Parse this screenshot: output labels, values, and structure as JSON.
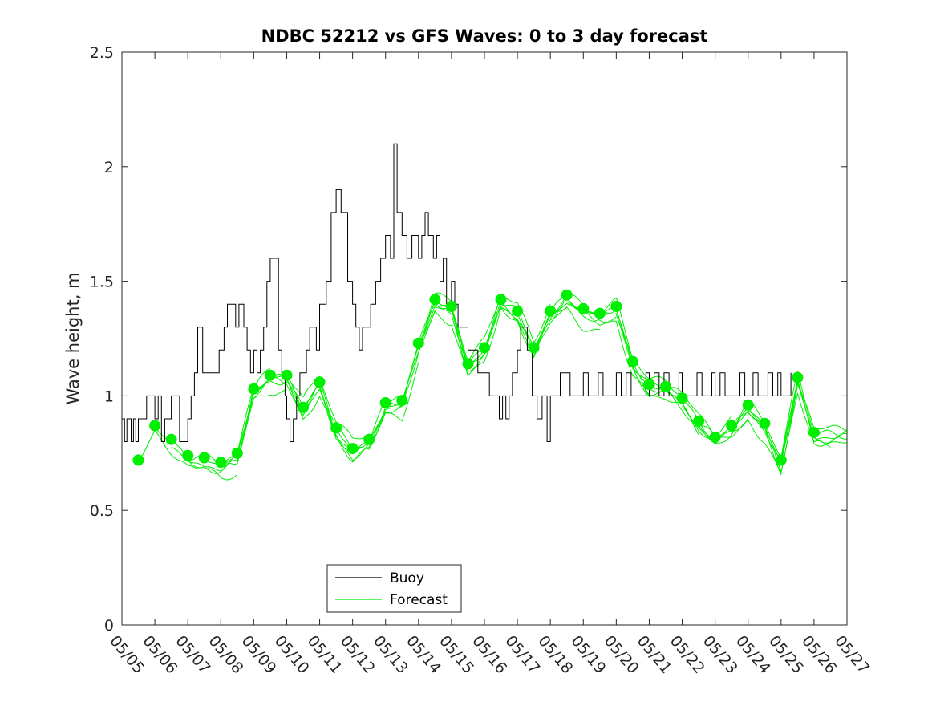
{
  "chart_data": {
    "type": "line",
    "title": "NDBC 52212 vs GFS Waves: 0 to 3 day forecast",
    "xlabel": "",
    "ylabel": "Wave height, m",
    "ylim": [
      0,
      2.5
    ],
    "xlim": [
      "05/05",
      "05/27"
    ],
    "x_tick_labels": [
      "05/05",
      "05/06",
      "05/07",
      "05/08",
      "05/09",
      "05/10",
      "05/11",
      "05/12",
      "05/13",
      "05/14",
      "05/15",
      "05/16",
      "05/17",
      "05/18",
      "05/19",
      "05/20",
      "05/21",
      "05/22",
      "05/23",
      "05/24",
      "05/25",
      "05/26",
      "05/27"
    ],
    "y_tick_labels": [
      "0",
      "0.5",
      "1",
      "1.5",
      "2",
      "2.5"
    ],
    "y_ticks": [
      0,
      0.5,
      1,
      1.5,
      2,
      2.5
    ],
    "grid": false,
    "legend_position": "bottom-left",
    "legend": [
      "Buoy",
      "Forecast"
    ],
    "colors": {
      "buoy": "#000000",
      "forecast": "#00ee00"
    },
    "series": [
      {
        "name": "Buoy",
        "x_days": [
          0,
          0.08,
          0.15,
          0.2,
          0.28,
          0.35,
          0.42,
          0.5,
          0.6,
          0.75,
          0.9,
          1.0,
          1.1,
          1.2,
          1.3,
          1.5,
          1.75,
          2.0,
          2.1,
          2.2,
          2.3,
          2.45,
          2.6,
          2.8,
          2.95,
          3.0,
          3.1,
          3.2,
          3.3,
          3.45,
          3.55,
          3.7,
          3.8,
          3.9,
          4.0,
          4.1,
          4.2,
          4.3,
          4.4,
          4.5,
          4.6,
          4.75,
          4.85,
          4.95,
          5.0,
          5.1,
          5.2,
          5.3,
          5.4,
          5.5,
          5.6,
          5.7,
          5.8,
          5.9,
          6.0,
          6.2,
          6.35,
          6.5,
          6.65,
          6.85,
          7.0,
          7.1,
          7.2,
          7.3,
          7.4,
          7.55,
          7.7,
          7.85,
          8.0,
          8.15,
          8.25,
          8.35,
          8.5,
          8.65,
          8.8,
          9.0,
          9.1,
          9.2,
          9.3,
          9.45,
          9.55,
          9.65,
          9.75,
          9.85,
          10.0,
          10.1,
          10.2,
          10.35,
          10.5,
          10.65,
          10.8,
          11.0,
          11.15,
          11.3,
          11.45,
          11.55,
          11.65,
          11.75,
          11.85,
          12.0,
          12.1,
          12.2,
          12.3,
          12.45,
          12.6,
          12.75,
          12.9,
          13.0,
          13.15,
          13.3,
          13.45,
          13.6,
          13.75,
          13.9,
          14.0,
          14.15,
          14.3,
          14.45,
          14.6,
          14.75,
          14.9,
          15.0,
          15.15,
          15.3,
          15.45,
          15.6,
          15.75,
          15.9,
          16.0,
          16.15,
          16.3,
          16.45,
          16.6,
          16.75,
          16.9,
          17.0,
          17.15,
          17.3,
          17.45,
          17.6,
          17.75,
          17.9,
          18.0,
          18.15,
          18.3,
          18.45,
          18.6,
          18.75,
          18.9,
          19.0,
          19.15,
          19.3,
          19.45,
          19.6,
          19.75,
          19.9,
          20.0,
          20.1,
          20.2,
          20.3
        ],
        "values": [
          0.9,
          0.8,
          0.9,
          0.9,
          0.8,
          0.9,
          0.8,
          0.9,
          0.9,
          1.0,
          1.0,
          0.9,
          1.0,
          0.8,
          0.9,
          1.0,
          0.8,
          0.9,
          1.0,
          1.1,
          1.3,
          1.1,
          1.1,
          1.1,
          1.2,
          1.2,
          1.3,
          1.4,
          1.4,
          1.3,
          1.4,
          1.3,
          1.2,
          1.1,
          1.2,
          1.1,
          1.2,
          1.3,
          1.5,
          1.6,
          1.6,
          1.2,
          1.1,
          1.0,
          0.9,
          0.8,
          0.9,
          1.0,
          1.1,
          1.1,
          1.2,
          1.3,
          1.3,
          1.2,
          1.4,
          1.5,
          1.8,
          1.9,
          1.8,
          1.5,
          1.4,
          1.3,
          1.2,
          1.3,
          1.3,
          1.4,
          1.5,
          1.6,
          1.7,
          1.6,
          2.1,
          1.8,
          1.7,
          1.6,
          1.7,
          1.6,
          1.7,
          1.8,
          1.7,
          1.6,
          1.7,
          1.5,
          1.6,
          1.4,
          1.5,
          1.4,
          1.3,
          1.3,
          1.2,
          1.2,
          1.1,
          1.1,
          1.0,
          1.0,
          0.9,
          1.0,
          0.9,
          1.0,
          1.1,
          1.2,
          1.3,
          1.3,
          1.2,
          1.0,
          0.9,
          1.0,
          0.8,
          1.0,
          1.0,
          1.1,
          1.1,
          1.0,
          1.0,
          1.0,
          1.1,
          1.0,
          1.0,
          1.1,
          1.0,
          1.0,
          1.0,
          1.1,
          1.0,
          1.1,
          1.0,
          1.0,
          1.0,
          1.1,
          1.0,
          1.1,
          1.0,
          1.1,
          1.0,
          1.0,
          1.1,
          1.0,
          1.0,
          1.0,
          1.1,
          1.0,
          1.0,
          1.1,
          1.0,
          1.1,
          1.0,
          1.0,
          1.0,
          1.1,
          1.0,
          1.0,
          1.1,
          1.0,
          1.0,
          1.1,
          1.0,
          1.1,
          1.0,
          1.0,
          1.0,
          1.1
        ]
      },
      {
        "name": "Forecast",
        "marker_x_days": [
          0.5,
          1.0,
          1.5,
          2.0,
          2.5,
          3.0,
          3.5,
          4.0,
          4.5,
          5.0,
          5.5,
          6.0,
          6.5,
          7.0,
          7.5,
          8.0,
          8.5,
          9.0,
          9.5,
          10.0,
          10.5,
          11.0,
          11.5,
          12.0,
          12.5,
          13.0,
          13.5,
          14.0,
          14.5,
          15.0,
          15.5,
          16.0,
          16.5,
          17.0,
          17.5,
          18.0,
          18.5,
          19.0,
          19.5,
          20.0,
          20.5,
          21.0
        ],
        "marker_values": [
          0.72,
          0.87,
          0.81,
          0.74,
          0.73,
          0.71,
          0.75,
          1.03,
          1.09,
          1.09,
          0.95,
          1.06,
          0.86,
          0.77,
          0.81,
          0.97,
          0.98,
          1.23,
          1.42,
          1.39,
          1.14,
          1.21,
          1.42,
          1.37,
          1.21,
          1.37,
          1.44,
          1.38,
          1.36,
          1.39,
          1.15,
          1.05,
          1.04,
          0.99,
          0.89,
          0.82,
          0.87,
          0.96,
          0.88,
          0.72,
          1.08,
          0.84
        ]
      }
    ]
  }
}
